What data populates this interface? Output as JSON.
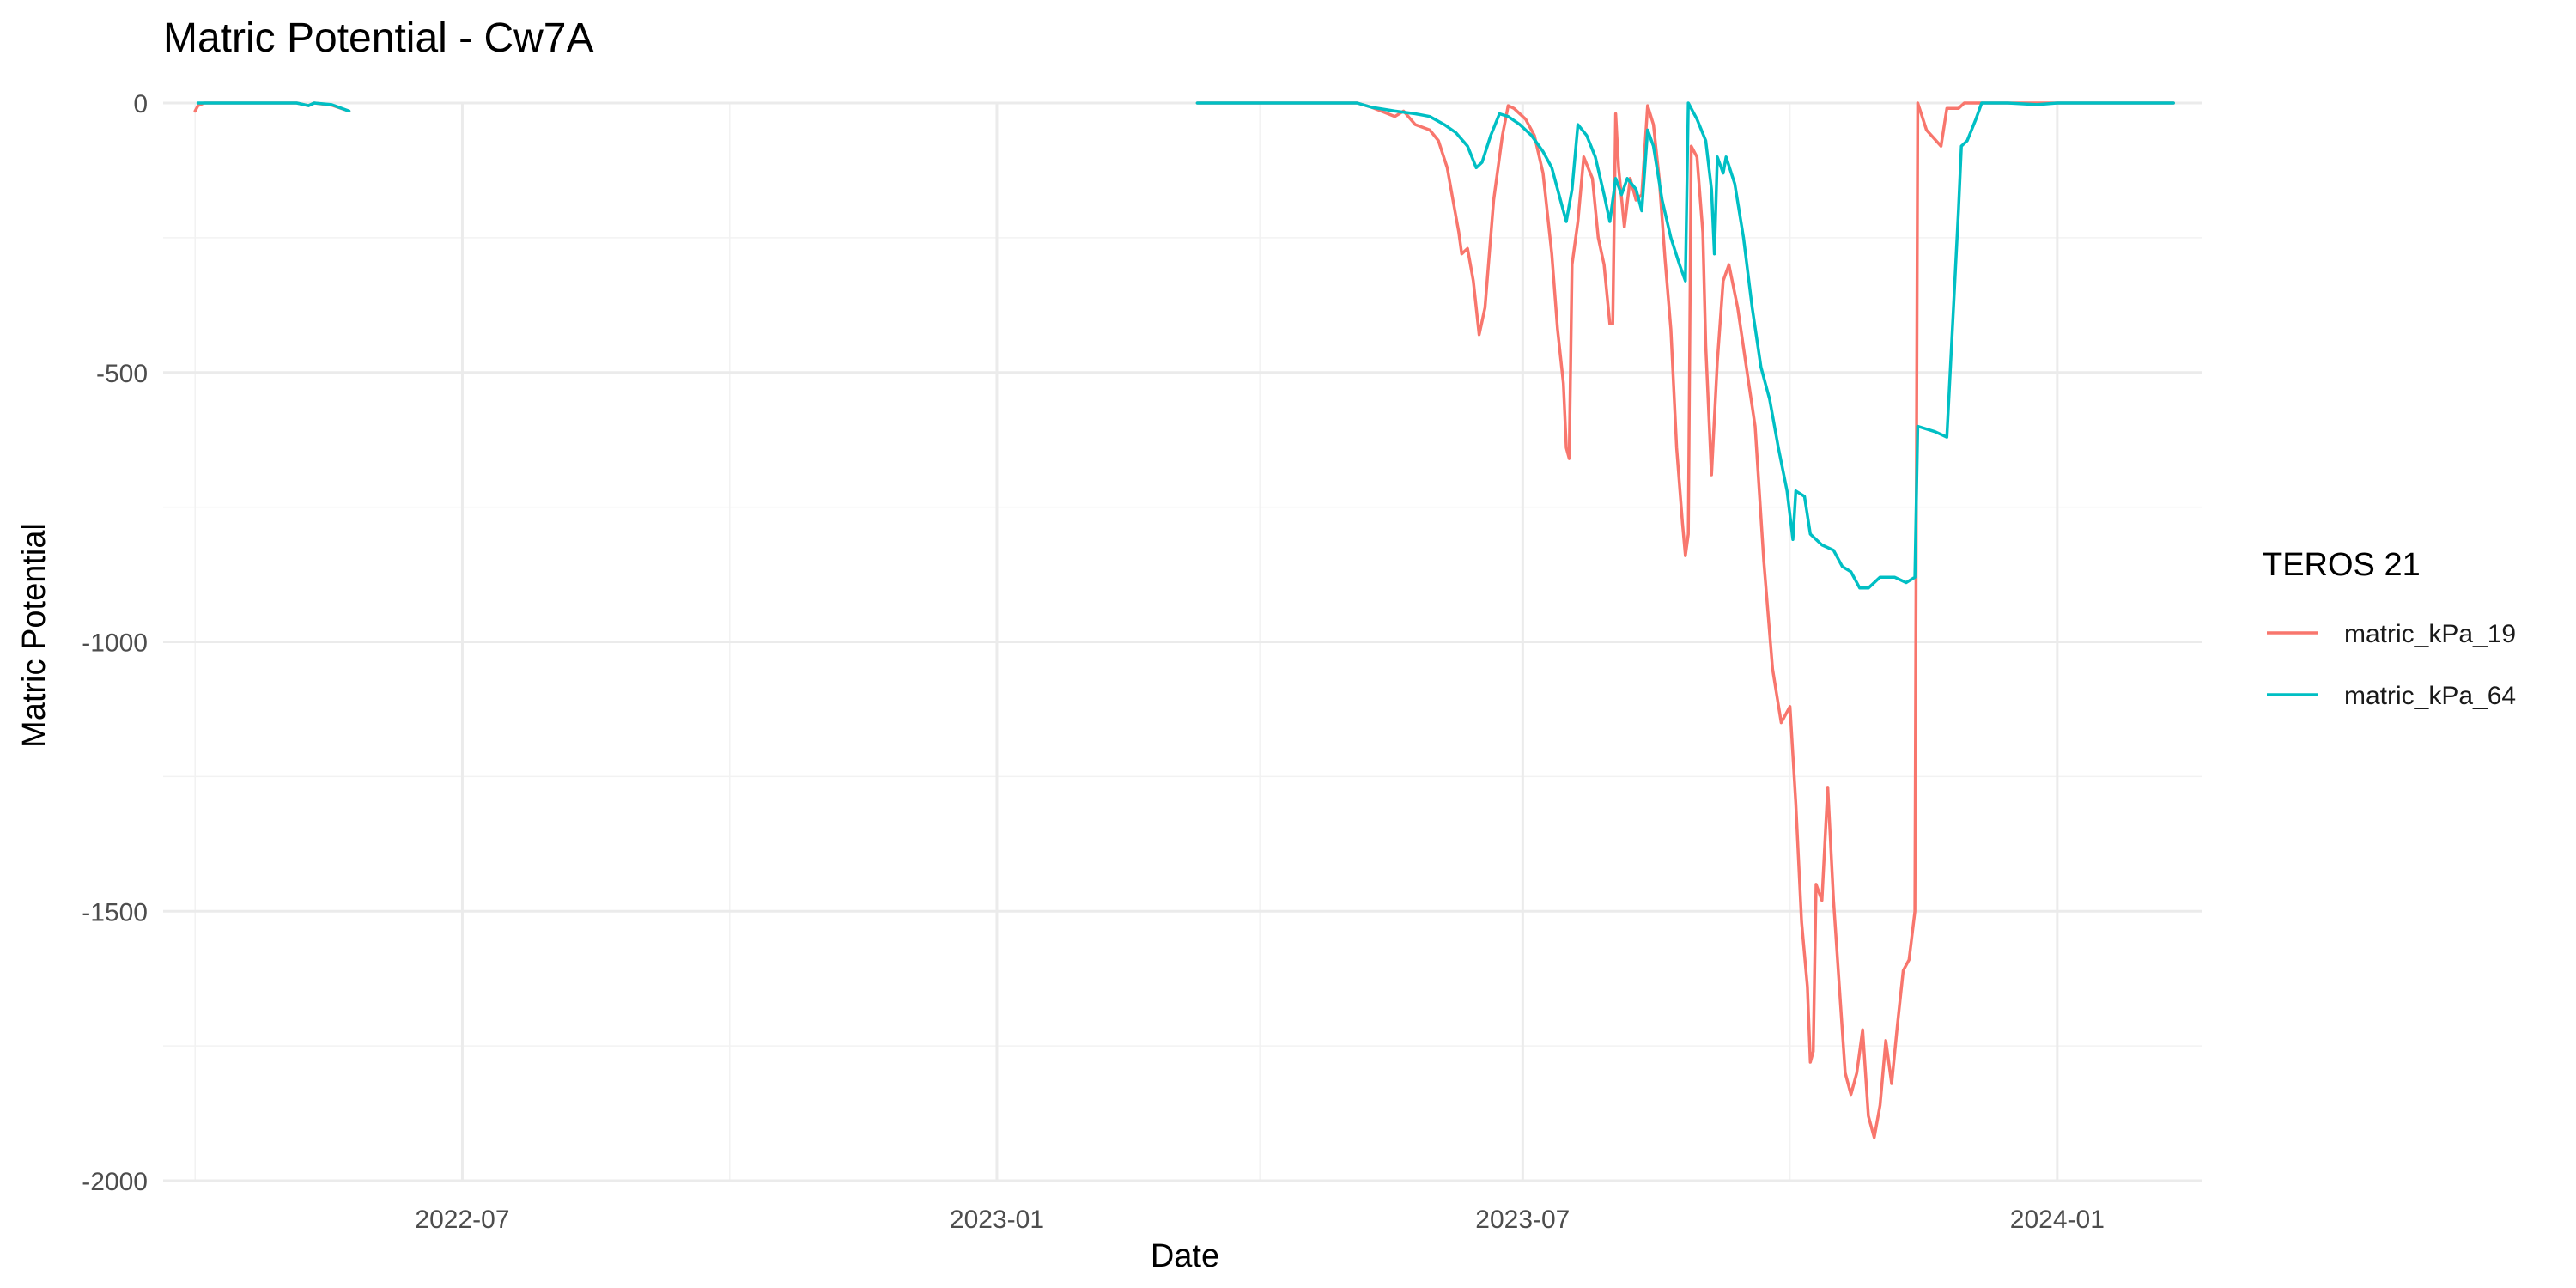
{
  "chart_data": {
    "type": "line",
    "title": "Matric Potential - Cw7A",
    "xlabel": "Date",
    "ylabel": "Matric Potential",
    "x_type": "date",
    "xlim": [
      "2022-03-20",
      "2024-02-20"
    ],
    "ylim": [
      -2000,
      0
    ],
    "x_ticks": [
      "2022-07-01",
      "2023-01-01",
      "2023-07-01",
      "2024-01-01"
    ],
    "x_tick_labels": [
      "2022-07",
      "2023-01",
      "2023-07",
      "2024-01"
    ],
    "y_ticks": [
      0,
      -500,
      -1000,
      -1500,
      -2000
    ],
    "y_tick_labels": [
      "0",
      "-500",
      "-1000",
      "-1500",
      "-2000"
    ],
    "grid": true,
    "legend": {
      "title": "TEROS 21",
      "placement": "right",
      "entries": [
        "matric_kPa_19",
        "matric_kPa_64"
      ]
    },
    "series": [
      {
        "name": "matric_kPa_19",
        "color": "#f8766d",
        "segments": [
          [
            [
              "2022-03-31",
              -15
            ],
            [
              "2022-04-01",
              -5
            ],
            [
              "2022-04-03",
              0
            ],
            [
              "2022-04-20",
              0
            ],
            [
              "2022-05-05",
              0
            ],
            [
              "2022-05-09",
              -5
            ],
            [
              "2022-05-11",
              0
            ],
            [
              "2022-05-17",
              -4
            ],
            [
              "2022-05-23",
              -15
            ]
          ],
          [
            [
              "2023-03-11",
              0
            ],
            [
              "2023-05-05",
              0
            ],
            [
              "2023-05-10",
              -8
            ],
            [
              "2023-05-18",
              -25
            ],
            [
              "2023-05-21",
              -15
            ],
            [
              "2023-05-25",
              -40
            ],
            [
              "2023-05-30",
              -50
            ],
            [
              "2023-06-02",
              -70
            ],
            [
              "2023-06-05",
              -120
            ],
            [
              "2023-06-07",
              -180
            ],
            [
              "2023-06-09",
              -240
            ],
            [
              "2023-06-10",
              -280
            ],
            [
              "2023-06-12",
              -270
            ],
            [
              "2023-06-14",
              -330
            ],
            [
              "2023-06-16",
              -430
            ],
            [
              "2023-06-18",
              -380
            ],
            [
              "2023-06-21",
              -180
            ],
            [
              "2023-06-24",
              -60
            ],
            [
              "2023-06-26",
              -5
            ],
            [
              "2023-06-28",
              -10
            ],
            [
              "2023-07-02",
              -30
            ],
            [
              "2023-07-05",
              -60
            ],
            [
              "2023-07-08",
              -130
            ],
            [
              "2023-07-11",
              -280
            ],
            [
              "2023-07-13",
              -420
            ],
            [
              "2023-07-15",
              -520
            ],
            [
              "2023-07-16",
              -640
            ],
            [
              "2023-07-17",
              -660
            ],
            [
              "2023-07-18",
              -300
            ],
            [
              "2023-07-20",
              -220
            ],
            [
              "2023-07-22",
              -100
            ],
            [
              "2023-07-25",
              -140
            ],
            [
              "2023-07-27",
              -250
            ],
            [
              "2023-07-29",
              -300
            ],
            [
              "2023-07-31",
              -410
            ],
            [
              "2023-08-01",
              -410
            ],
            [
              "2023-08-02",
              -20
            ],
            [
              "2023-08-03",
              -120
            ],
            [
              "2023-08-05",
              -230
            ],
            [
              "2023-08-07",
              -140
            ],
            [
              "2023-08-09",
              -180
            ],
            [
              "2023-08-11",
              -170
            ],
            [
              "2023-08-13",
              -5
            ],
            [
              "2023-08-15",
              -40
            ],
            [
              "2023-08-17",
              -140
            ],
            [
              "2023-08-19",
              -290
            ],
            [
              "2023-08-21",
              -420
            ],
            [
              "2023-08-23",
              -640
            ],
            [
              "2023-08-25",
              -780
            ],
            [
              "2023-08-26",
              -840
            ],
            [
              "2023-08-27",
              -800
            ],
            [
              "2023-08-28",
              -80
            ],
            [
              "2023-08-30",
              -100
            ],
            [
              "2023-09-01",
              -240
            ],
            [
              "2023-09-02",
              -450
            ],
            [
              "2023-09-04",
              -690
            ],
            [
              "2023-09-06",
              -480
            ],
            [
              "2023-09-08",
              -330
            ],
            [
              "2023-09-10",
              -300
            ],
            [
              "2023-09-13",
              -380
            ],
            [
              "2023-09-16",
              -490
            ],
            [
              "2023-09-19",
              -600
            ],
            [
              "2023-09-22",
              -850
            ],
            [
              "2023-09-25",
              -1050
            ],
            [
              "2023-09-28",
              -1150
            ],
            [
              "2023-10-01",
              -1120
            ],
            [
              "2023-10-03",
              -1300
            ],
            [
              "2023-10-05",
              -1520
            ],
            [
              "2023-10-07",
              -1640
            ],
            [
              "2023-10-08",
              -1780
            ],
            [
              "2023-10-09",
              -1760
            ],
            [
              "2023-10-10",
              -1450
            ],
            [
              "2023-10-12",
              -1480
            ],
            [
              "2023-10-14",
              -1270
            ],
            [
              "2023-10-16",
              -1480
            ],
            [
              "2023-10-18",
              -1640
            ],
            [
              "2023-10-20",
              -1800
            ],
            [
              "2023-10-22",
              -1840
            ],
            [
              "2023-10-24",
              -1800
            ],
            [
              "2023-10-26",
              -1720
            ],
            [
              "2023-10-28",
              -1880
            ],
            [
              "2023-10-30",
              -1920
            ],
            [
              "2023-11-01",
              -1860
            ],
            [
              "2023-11-03",
              -1740
            ],
            [
              "2023-11-05",
              -1820
            ],
            [
              "2023-11-07",
              -1710
            ],
            [
              "2023-11-09",
              -1610
            ],
            [
              "2023-11-11",
              -1590
            ],
            [
              "2023-11-13",
              -1500
            ],
            [
              "2023-11-14",
              0
            ],
            [
              "2023-11-17",
              -50
            ],
            [
              "2023-11-22",
              -80
            ],
            [
              "2023-11-24",
              -10
            ],
            [
              "2023-11-28",
              -10
            ],
            [
              "2023-11-30",
              0
            ],
            [
              "2024-02-10",
              0
            ]
          ]
        ]
      },
      {
        "name": "matric_kPa_64",
        "color": "#00bfc4",
        "segments": [
          [
            [
              "2022-04-01",
              0
            ],
            [
              "2022-04-20",
              0
            ],
            [
              "2022-05-05",
              0
            ],
            [
              "2022-05-09",
              -5
            ],
            [
              "2022-05-11",
              0
            ],
            [
              "2022-05-17",
              -3
            ],
            [
              "2022-05-23",
              -15
            ]
          ],
          [
            [
              "2023-03-11",
              0
            ],
            [
              "2023-05-05",
              0
            ],
            [
              "2023-05-10",
              -8
            ],
            [
              "2023-05-18",
              -15
            ],
            [
              "2023-05-25",
              -20
            ],
            [
              "2023-05-30",
              -25
            ],
            [
              "2023-06-04",
              -40
            ],
            [
              "2023-06-08",
              -55
            ],
            [
              "2023-06-12",
              -80
            ],
            [
              "2023-06-15",
              -120
            ],
            [
              "2023-06-17",
              -110
            ],
            [
              "2023-06-20",
              -60
            ],
            [
              "2023-06-23",
              -20
            ],
            [
              "2023-06-26",
              -25
            ],
            [
              "2023-06-30",
              -40
            ],
            [
              "2023-07-04",
              -60
            ],
            [
              "2023-07-08",
              -90
            ],
            [
              "2023-07-11",
              -120
            ],
            [
              "2023-07-14",
              -180
            ],
            [
              "2023-07-16",
              -220
            ],
            [
              "2023-07-18",
              -160
            ],
            [
              "2023-07-20",
              -40
            ],
            [
              "2023-07-23",
              -60
            ],
            [
              "2023-07-26",
              -100
            ],
            [
              "2023-07-29",
              -170
            ],
            [
              "2023-07-31",
              -220
            ],
            [
              "2023-08-02",
              -140
            ],
            [
              "2023-08-04",
              -170
            ],
            [
              "2023-08-06",
              -140
            ],
            [
              "2023-08-09",
              -160
            ],
            [
              "2023-08-11",
              -200
            ],
            [
              "2023-08-13",
              -50
            ],
            [
              "2023-08-15",
              -80
            ],
            [
              "2023-08-18",
              -180
            ],
            [
              "2023-08-21",
              -250
            ],
            [
              "2023-08-24",
              -300
            ],
            [
              "2023-08-26",
              -330
            ],
            [
              "2023-08-27",
              0
            ],
            [
              "2023-08-30",
              -30
            ],
            [
              "2023-09-02",
              -70
            ],
            [
              "2023-09-04",
              -160
            ],
            [
              "2023-09-05",
              -280
            ],
            [
              "2023-09-06",
              -100
            ],
            [
              "2023-09-08",
              -130
            ],
            [
              "2023-09-09",
              -100
            ],
            [
              "2023-09-12",
              -150
            ],
            [
              "2023-09-15",
              -250
            ],
            [
              "2023-09-18",
              -380
            ],
            [
              "2023-09-21",
              -490
            ],
            [
              "2023-09-24",
              -550
            ],
            [
              "2023-09-27",
              -640
            ],
            [
              "2023-09-30",
              -720
            ],
            [
              "2023-10-02",
              -810
            ],
            [
              "2023-10-03",
              -720
            ],
            [
              "2023-10-06",
              -730
            ],
            [
              "2023-10-08",
              -800
            ],
            [
              "2023-10-12",
              -820
            ],
            [
              "2023-10-16",
              -830
            ],
            [
              "2023-10-19",
              -860
            ],
            [
              "2023-10-22",
              -870
            ],
            [
              "2023-10-25",
              -900
            ],
            [
              "2023-10-28",
              -900
            ],
            [
              "2023-11-01",
              -880
            ],
            [
              "2023-11-06",
              -880
            ],
            [
              "2023-11-10",
              -890
            ],
            [
              "2023-11-13",
              -880
            ],
            [
              "2023-11-14",
              -600
            ],
            [
              "2023-11-20",
              -610
            ],
            [
              "2023-11-24",
              -620
            ],
            [
              "2023-11-28",
              -200
            ],
            [
              "2023-11-29",
              -80
            ],
            [
              "2023-12-01",
              -70
            ],
            [
              "2023-12-04",
              -30
            ],
            [
              "2023-12-06",
              0
            ],
            [
              "2023-12-15",
              0
            ],
            [
              "2023-12-25",
              -3
            ],
            [
              "2024-01-01",
              0
            ],
            [
              "2024-02-10",
              0
            ]
          ]
        ]
      }
    ]
  }
}
